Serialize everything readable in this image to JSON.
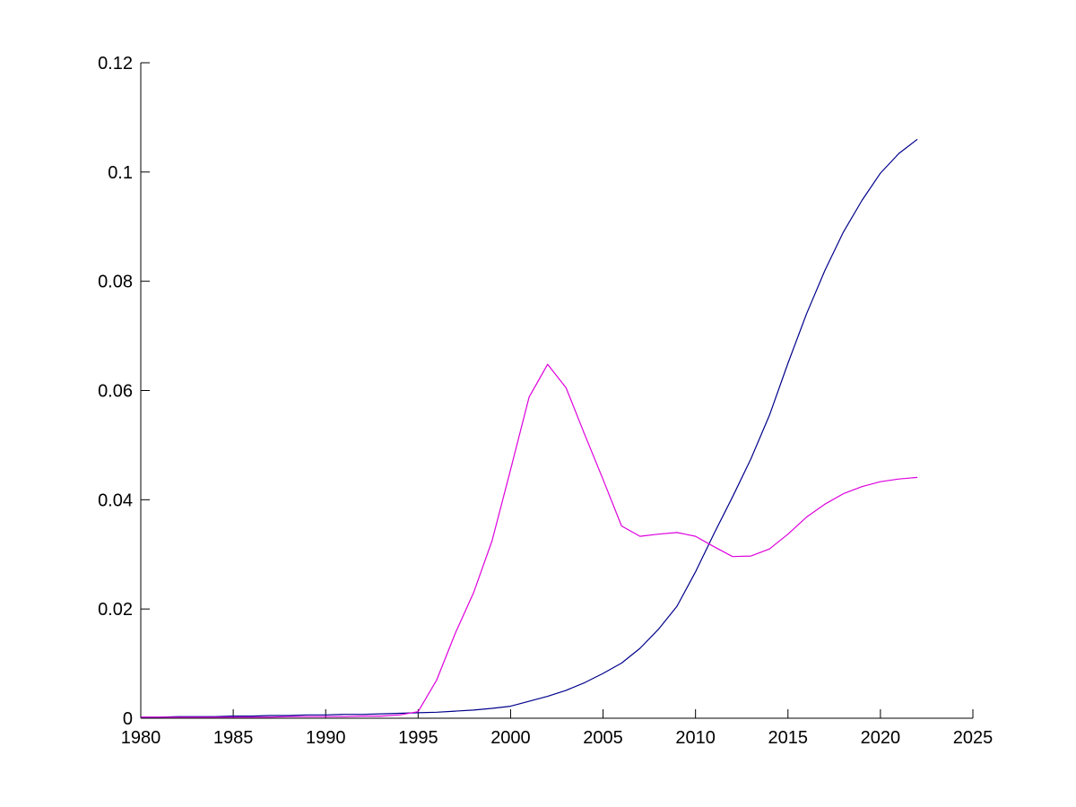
{
  "figure": {
    "background": "#ffffff",
    "axis_color": "#000000",
    "label_color": "#000000"
  },
  "chart_data": {
    "type": "line",
    "title": "",
    "xlabel": "",
    "ylabel": "",
    "grid": false,
    "legend": "none",
    "box": false,
    "xlim": [
      1980,
      2025
    ],
    "ylim": [
      0,
      0.12
    ],
    "xtick_values": [
      1980,
      1985,
      1990,
      1995,
      2000,
      2005,
      2010,
      2015,
      2020,
      2025
    ],
    "xtick_labels": [
      "1980",
      "1985",
      "1990",
      "1995",
      "2000",
      "2005",
      "2010",
      "2015",
      "2020",
      "2025"
    ],
    "ytick_values": [
      0,
      0.02,
      0.04,
      0.06,
      0.08,
      0.1,
      0.12
    ],
    "ytick_labels": [
      "0",
      "0.02",
      "0.04",
      "0.06",
      "0.08",
      "0.1",
      "0.12"
    ],
    "x": [
      1980,
      1981,
      1982,
      1983,
      1984,
      1985,
      1986,
      1987,
      1988,
      1989,
      1990,
      1991,
      1992,
      1993,
      1994,
      1995,
      1996,
      1997,
      1998,
      1999,
      2000,
      2001,
      2002,
      2003,
      2004,
      2005,
      2006,
      2007,
      2008,
      2009,
      2010,
      2011,
      2012,
      2013,
      2014,
      2015,
      2016,
      2017,
      2018,
      2019,
      2020,
      2021,
      2022
    ],
    "series": [
      {
        "name": "blue",
        "color": "#00008B",
        "values": [
          0.0002,
          0.0002,
          0.0003,
          0.0003,
          0.0003,
          0.0004,
          0.0004,
          0.0005,
          0.0005,
          0.0006,
          0.0006,
          0.0007,
          0.0007,
          0.0008,
          0.0009,
          0.001,
          0.0011,
          0.0013,
          0.0015,
          0.0018,
          0.0022,
          0.0031,
          0.004,
          0.0051,
          0.0065,
          0.0082,
          0.0101,
          0.0128,
          0.0163,
          0.0205,
          0.0268,
          0.0338,
          0.0405,
          0.0475,
          0.0555,
          0.065,
          0.074,
          0.082,
          0.089,
          0.0948,
          0.0998,
          0.1034,
          0.106
        ]
      },
      {
        "name": "magenta",
        "color": "#DD00DD",
        "values": [
          0.0002,
          0.0002,
          0.0002,
          0.0002,
          0.0002,
          0.0002,
          0.0002,
          0.0002,
          0.0003,
          0.0003,
          0.0003,
          0.0003,
          0.0004,
          0.0004,
          0.0006,
          0.0012,
          0.007,
          0.0155,
          0.023,
          0.0325,
          0.0455,
          0.0588,
          0.0648,
          0.0605,
          0.052,
          0.0437,
          0.0352,
          0.0333,
          0.0337,
          0.034,
          0.0333,
          0.0314,
          0.0296,
          0.0297,
          0.031,
          0.0337,
          0.0368,
          0.0392,
          0.0411,
          0.0424,
          0.0433,
          0.0438,
          0.0441
        ]
      }
    ]
  }
}
